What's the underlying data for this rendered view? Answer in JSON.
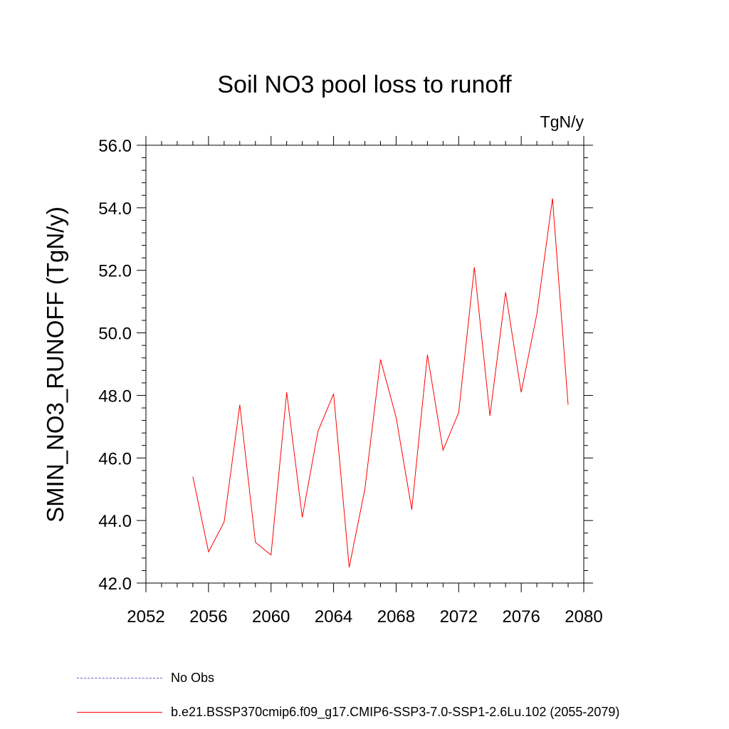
{
  "chart_data": {
    "type": "line",
    "title": "Soil NO3 pool loss to runoff",
    "units_label": "TgN/y",
    "ylabel": "SMIN_NO3_RUNOFF  (TgN/y)",
    "xlabel": "",
    "xlim": [
      2052,
      2080
    ],
    "ylim": [
      42.0,
      56.0
    ],
    "x_ticks": [
      "2052",
      "2056",
      "2060",
      "2064",
      "2068",
      "2072",
      "2076",
      "2080"
    ],
    "y_ticks": [
      "42.0",
      "44.0",
      "46.0",
      "48.0",
      "50.0",
      "52.0",
      "54.0",
      "56.0"
    ],
    "grid": false,
    "legend_position": "bottom",
    "series": [
      {
        "name": "b.e21.BSSP370cmip6.f09_g17.CMIP6-SSP3-7.0-SSP1-2.6Lu.102 (2055-2079)",
        "color": "#ff0000",
        "x": [
          2055,
          2056,
          2057,
          2058,
          2059,
          2060,
          2061,
          2062,
          2063,
          2064,
          2065,
          2066,
          2067,
          2068,
          2069,
          2070,
          2071,
          2072,
          2073,
          2074,
          2075,
          2076,
          2077,
          2078,
          2079
        ],
        "y": [
          45.4,
          43.0,
          43.95,
          47.7,
          43.3,
          42.9,
          48.1,
          44.1,
          46.85,
          48.05,
          42.5,
          45.0,
          49.15,
          47.3,
          44.35,
          49.3,
          46.25,
          47.45,
          52.1,
          47.35,
          51.3,
          48.1,
          50.6,
          54.3,
          47.7
        ]
      }
    ],
    "legend": [
      {
        "label": "No Obs",
        "color": "#6a5acd",
        "style": "dashed"
      },
      {
        "label": "b.e21.BSSP370cmip6.f09_g17.CMIP6-SSP3-7.0-SSP1-2.6Lu.102 (2055-2079)",
        "color": "#ff0000",
        "style": "solid"
      }
    ]
  }
}
